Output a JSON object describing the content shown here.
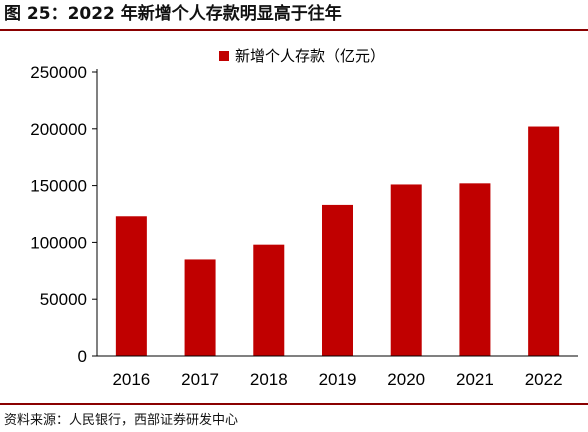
{
  "figure_title": "图 25：2022 年新增个人存款明显高于往年",
  "source_note": "资料来源：人民银行，西部证券研发中心",
  "colors": {
    "bar": "#c00000",
    "rule": "#8a0000",
    "axis": "#000000"
  },
  "chart_data": {
    "type": "bar",
    "categories": [
      "2016",
      "2017",
      "2018",
      "2019",
      "2020",
      "2021",
      "2022"
    ],
    "series": [
      {
        "name": "新增个人存款（亿元）",
        "values": [
          123000,
          85000,
          98000,
          133000,
          151000,
          152000,
          202000
        ]
      }
    ],
    "y_ticks": [
      "0",
      "50000",
      "100000",
      "150000",
      "200000",
      "250000"
    ],
    "ylim": [
      0,
      250000
    ],
    "grid": false,
    "legend_position": "top-center"
  }
}
